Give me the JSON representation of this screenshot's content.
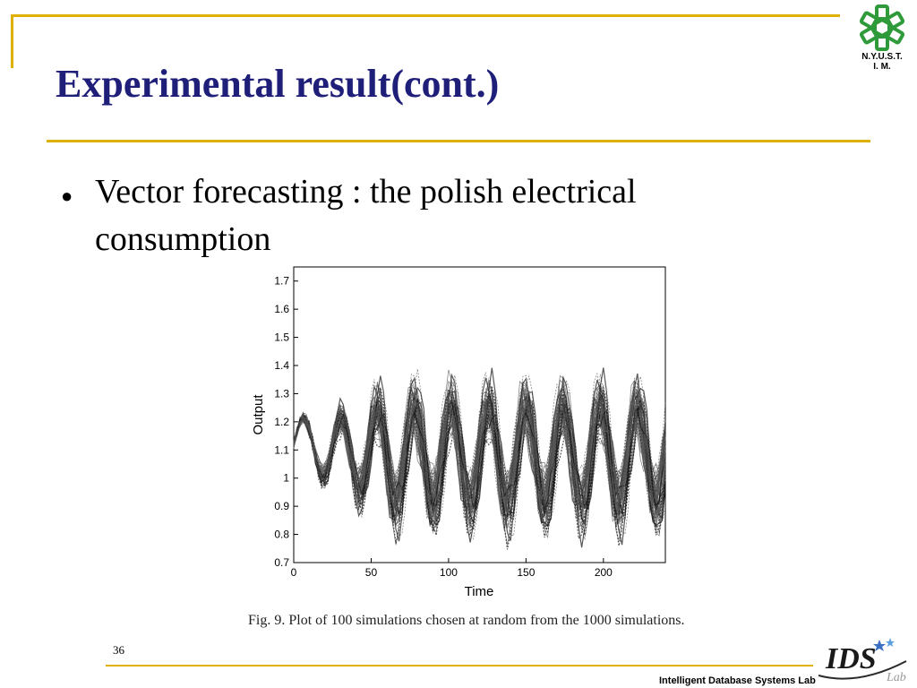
{
  "slide": {
    "title": "Experimental result(cont.)",
    "bullet": "Vector forecasting : the polish electrical consumption",
    "caption": "Fig. 9.  Plot of 100 simulations chosen at random from the 1000 simulations.",
    "page_number": "36",
    "footer_lab": "Intelligent Database Systems Lab",
    "logo_top_line1": "N.Y.U.S.T.",
    "logo_top_line2": "I. M.",
    "ids_logo_label": "IDS",
    "ids_logo_sub": "Lab",
    "colors": {
      "title": "#1f1f7a",
      "accent_rule": "#e0b000",
      "logo_green": "#2f9a3a"
    }
  },
  "chart_data": {
    "type": "line",
    "xlabel": "Time",
    "ylabel": "Output",
    "xlim": [
      0,
      240
    ],
    "ylim": [
      0.7,
      1.75
    ],
    "xticks": [
      0,
      50,
      100,
      150,
      200
    ],
    "xtick_labels": [
      "0",
      "50",
      "100",
      "150",
      "200"
    ],
    "yticks": [
      0.7,
      0.8,
      0.9,
      1.0,
      1.1,
      1.2,
      1.3,
      1.4,
      1.5,
      1.6,
      1.7
    ],
    "ytick_labels": [
      "0.7",
      "0.8",
      "0.9",
      "1",
      "1.1",
      "1.2",
      "1.3",
      "1.4",
      "1.5",
      "1.6",
      "1.7"
    ],
    "grid": false,
    "series_count": 100
  }
}
